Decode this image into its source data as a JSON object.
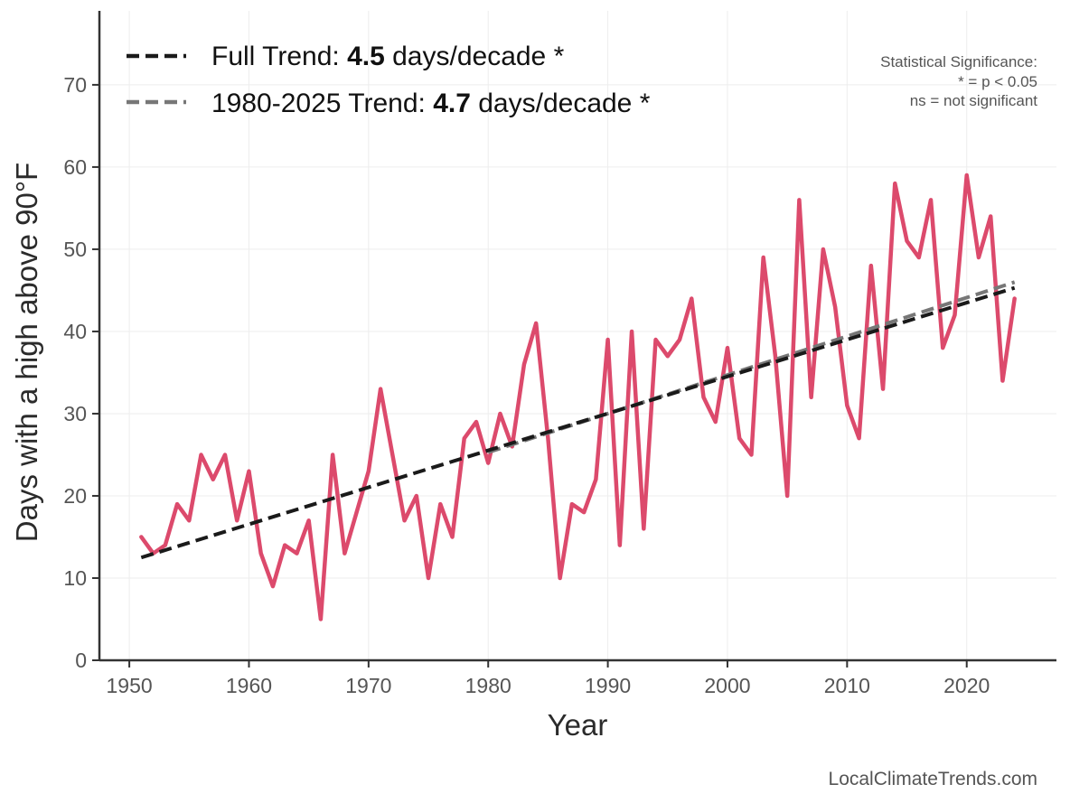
{
  "chart_data": {
    "type": "line",
    "title": "",
    "xlabel": "Year",
    "ylabel": "Days with a high above 90°F",
    "xlim": [
      1947.5,
      2027.5
    ],
    "ylim": [
      0,
      79
    ],
    "xticks": [
      1950,
      1960,
      1970,
      1980,
      1990,
      2000,
      2010,
      2020
    ],
    "yticks": [
      0,
      10,
      20,
      30,
      40,
      50,
      60,
      70
    ],
    "grid": true,
    "series": [
      {
        "name": "Days above 90°F",
        "color": "#dc4a6c",
        "x": [
          1951,
          1952,
          1953,
          1954,
          1955,
          1956,
          1957,
          1958,
          1959,
          1960,
          1961,
          1962,
          1963,
          1964,
          1965,
          1966,
          1967,
          1968,
          1969,
          1970,
          1971,
          1972,
          1973,
          1974,
          1975,
          1976,
          1977,
          1978,
          1979,
          1980,
          1981,
          1982,
          1983,
          1984,
          1985,
          1986,
          1987,
          1988,
          1989,
          1990,
          1991,
          1992,
          1993,
          1994,
          1995,
          1996,
          1997,
          1998,
          1999,
          2000,
          2001,
          2002,
          2003,
          2004,
          2005,
          2006,
          2007,
          2008,
          2009,
          2010,
          2011,
          2012,
          2013,
          2014,
          2015,
          2016,
          2017,
          2018,
          2019,
          2020,
          2021,
          2022,
          2023,
          2024
        ],
        "values": [
          15,
          13,
          14,
          19,
          17,
          25,
          22,
          25,
          17,
          23,
          13,
          9,
          14,
          13,
          17,
          5,
          25,
          13,
          18,
          23,
          33,
          25,
          17,
          20,
          10,
          19,
          15,
          27,
          29,
          24,
          30,
          26,
          36,
          41,
          27,
          10,
          19,
          18,
          22,
          39,
          14,
          40,
          16,
          39,
          37,
          39,
          44,
          32,
          29,
          38,
          27,
          25,
          49,
          37,
          20,
          56,
          32,
          50,
          43,
          31,
          27,
          48,
          33,
          58,
          51,
          49,
          56,
          38,
          42,
          59,
          49,
          54,
          34,
          44
        ]
      },
      {
        "name": "Full Trend",
        "color": "#1a1a1a",
        "dashed": true,
        "x": [
          1951,
          2024
        ],
        "values": [
          12.5,
          45.3
        ]
      },
      {
        "name": "1980-2025 Trend",
        "color": "#777777",
        "dashed": true,
        "x": [
          1980,
          2024
        ],
        "values": [
          25.3,
          46.0
        ]
      }
    ],
    "legend": {
      "placement": "top-left",
      "entries": [
        {
          "prefix": "Full Trend: ",
          "value": "4.5",
          "suffix": " days/decade *",
          "color": "#1a1a1a"
        },
        {
          "prefix": "1980-2025 Trend: ",
          "value": "4.7",
          "suffix": " days/decade *",
          "color": "#777777"
        }
      ]
    },
    "annotations": {
      "significance": [
        "Statistical Significance:",
        "* = p < 0.05",
        "ns = not significant"
      ],
      "credit": "LocalClimateTrends.com"
    }
  }
}
